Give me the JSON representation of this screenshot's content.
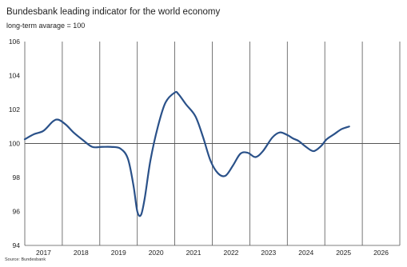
{
  "title": "Bundesbank leading indicator for the world economy",
  "subtitle": "long-term avarage = 100",
  "source": "Source: Bundesbank",
  "colors": {
    "line": "#2a5189",
    "grid": "#555555",
    "reference": "#555555"
  },
  "chart_data": {
    "type": "line",
    "title": "Bundesbank leading indicator for the world economy",
    "subtitle": "long-term avarage = 100",
    "xlabel": "",
    "ylabel": "",
    "xlim": [
      2017,
      2027
    ],
    "ylim": [
      94,
      106
    ],
    "yticks": [
      94,
      96,
      98,
      100,
      102,
      104,
      106
    ],
    "xtick_labels": [
      "2017",
      "2018",
      "2019",
      "2020",
      "2021",
      "2022",
      "2023",
      "2024",
      "2025",
      "2026"
    ],
    "reference_line": 100,
    "grid": "vertical",
    "series": [
      {
        "x": [
          2017.0,
          2017.25,
          2017.5,
          2017.75,
          2017.9,
          2018.1,
          2018.3,
          2018.55,
          2018.8,
          2019.05,
          2019.3,
          2019.55,
          2019.75,
          2019.9,
          2020.0,
          2020.1,
          2020.2,
          2020.35,
          2020.55,
          2020.75,
          2021.0,
          2021.1,
          2021.3,
          2021.55,
          2021.75,
          2021.95,
          2022.15,
          2022.35,
          2022.55,
          2022.75,
          2022.95,
          2023.15,
          2023.35,
          2023.6,
          2023.8,
          2024.0,
          2024.15,
          2024.3,
          2024.5,
          2024.7,
          2024.9,
          2025.05,
          2025.25,
          2025.45,
          2025.65
        ],
        "y": [
          100.25,
          100.55,
          100.75,
          101.3,
          101.4,
          101.1,
          100.65,
          100.2,
          99.8,
          99.8,
          99.8,
          99.7,
          99.1,
          97.5,
          96.0,
          95.8,
          96.8,
          99.0,
          101.0,
          102.4,
          103.0,
          102.9,
          102.3,
          101.6,
          100.4,
          99.0,
          98.25,
          98.1,
          98.7,
          99.4,
          99.45,
          99.2,
          99.55,
          100.35,
          100.65,
          100.5,
          100.3,
          100.15,
          99.8,
          99.55,
          99.85,
          100.25,
          100.55,
          100.85,
          101.0
        ]
      }
    ]
  }
}
